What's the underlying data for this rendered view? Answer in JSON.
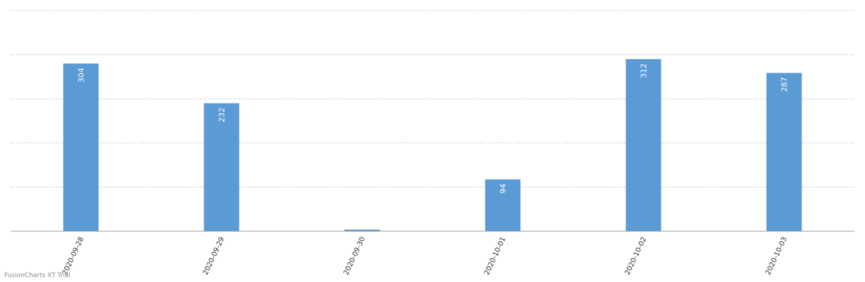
{
  "chart_data": {
    "type": "bar",
    "categories": [
      "2020-09-28",
      "2020-09-29",
      "2020-09-30",
      "2020-10-01",
      "2020-10-02",
      "2020-10-03"
    ],
    "values": [
      304,
      232,
      3,
      94,
      312,
      287
    ],
    "data_labels": [
      "304",
      "232",
      "",
      "94",
      "312",
      "287"
    ],
    "title": "",
    "xlabel": "",
    "ylabel": "",
    "ylim": [
      0,
      400
    ],
    "y_gridlines": [
      0,
      80,
      160,
      240,
      320,
      400
    ],
    "grid": true,
    "legend": "none",
    "bar_color": "#5b9bd5"
  },
  "watermark": "FusionCharts XT Trial"
}
